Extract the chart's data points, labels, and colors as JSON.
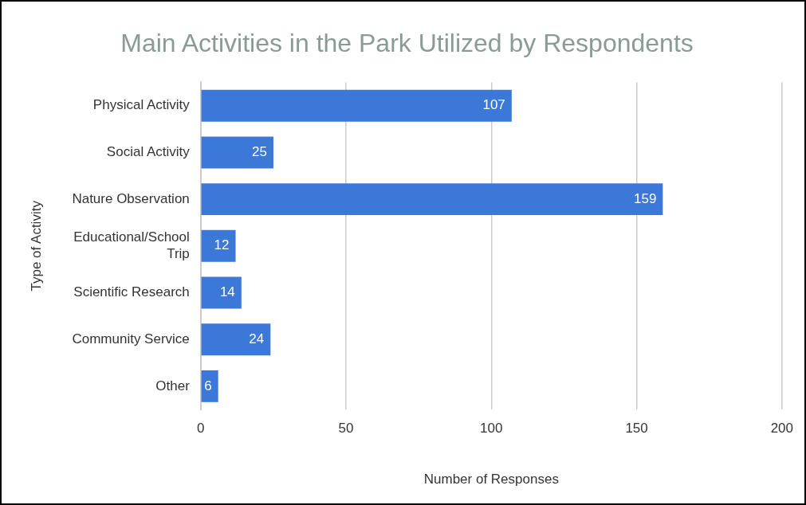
{
  "chart_data": {
    "type": "bar",
    "orientation": "horizontal",
    "title": "Main Activities in the Park Utilized by Respondents",
    "xlabel": "Number of Responses",
    "ylabel": "Type of Activity",
    "categories": [
      "Physical Activity",
      "Social Activity",
      "Nature Observation",
      "Educational/School Trip",
      "Scientific Research",
      "Community Service",
      "Other"
    ],
    "values": [
      107,
      25,
      159,
      12,
      14,
      24,
      6
    ],
    "color": "#3c78d8",
    "xlim": [
      0,
      200
    ],
    "xticks": [
      0,
      50,
      100,
      150,
      200
    ],
    "grid": "x",
    "data_labels": true
  }
}
